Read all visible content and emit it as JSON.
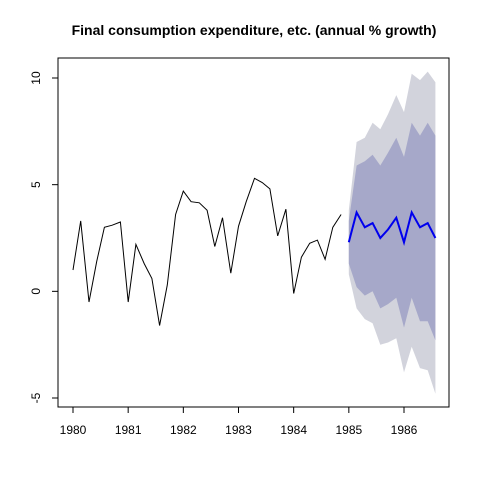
{
  "chart_data": {
    "type": "line",
    "title": "Final consumption expenditure, etc. (annual % growth)",
    "xlabel": "",
    "ylabel": "",
    "xlim": [
      1980,
      1986.6
    ],
    "ylim": [
      -5,
      10.5
    ],
    "x_ticks": [
      1980,
      1981,
      1982,
      1983,
      1984,
      1985,
      1986
    ],
    "x_tick_labels": [
      "1980",
      "1981",
      "1982",
      "1983",
      "1984",
      "1985",
      "1986"
    ],
    "y_ticks": [
      -5,
      0,
      5,
      10
    ],
    "y_tick_labels": [
      "-5",
      "0",
      "5",
      "10"
    ],
    "grid": false,
    "legend": "none",
    "colors": {
      "history_line": "#000000",
      "forecast_line": "#0000ee",
      "band_80": "#a6a8c9",
      "band_95": "#d2d3dc"
    },
    "history": {
      "x": [
        1980.0,
        1980.14,
        1980.29,
        1980.43,
        1980.57,
        1980.71,
        1980.86,
        1981.0,
        1981.14,
        1981.29,
        1981.43,
        1981.57,
        1981.71,
        1981.86,
        1982.0,
        1982.14,
        1982.29,
        1982.43,
        1982.57,
        1982.71,
        1982.86,
        1983.0,
        1983.14,
        1983.29,
        1983.43,
        1983.57,
        1983.71,
        1983.86,
        1984.0,
        1984.14,
        1984.29,
        1984.43,
        1984.57,
        1984.71,
        1984.86
      ],
      "y": [
        1.0,
        3.3,
        -0.5,
        1.4,
        3.0,
        3.1,
        3.25,
        -0.5,
        2.2,
        1.3,
        0.6,
        -1.6,
        0.3,
        3.6,
        4.7,
        4.2,
        4.15,
        3.8,
        2.1,
        3.45,
        0.85,
        3.05,
        4.2,
        5.3,
        5.1,
        4.8,
        2.6,
        3.85,
        -0.1,
        1.6,
        2.25,
        2.4,
        1.5,
        3.0,
        3.6
      ]
    },
    "forecast": {
      "x": [
        1985.0,
        1985.14,
        1985.29,
        1985.43,
        1985.57,
        1985.71,
        1985.86,
        1986.0,
        1986.14,
        1986.29,
        1986.43,
        1986.57
      ],
      "mean": [
        2.3,
        3.7,
        3.0,
        3.2,
        2.5,
        2.9,
        3.45,
        2.3,
        3.7,
        3.0,
        3.2,
        2.5
      ],
      "lo80": [
        1.3,
        0.2,
        -0.2,
        0.0,
        -0.8,
        -0.6,
        -0.3,
        -1.7,
        -0.3,
        -1.4,
        -1.4,
        -2.3
      ],
      "hi80": [
        3.3,
        5.9,
        6.1,
        6.4,
        5.9,
        6.5,
        7.2,
        6.3,
        7.9,
        7.3,
        7.9,
        7.3
      ],
      "lo95": [
        0.8,
        -0.8,
        -1.3,
        -1.5,
        -2.5,
        -2.4,
        -2.2,
        -3.8,
        -2.6,
        -3.6,
        -3.7,
        -4.8
      ],
      "hi95": [
        3.8,
        7.0,
        7.2,
        7.9,
        7.6,
        8.3,
        9.2,
        8.4,
        10.2,
        9.9,
        10.3,
        9.8
      ]
    }
  }
}
